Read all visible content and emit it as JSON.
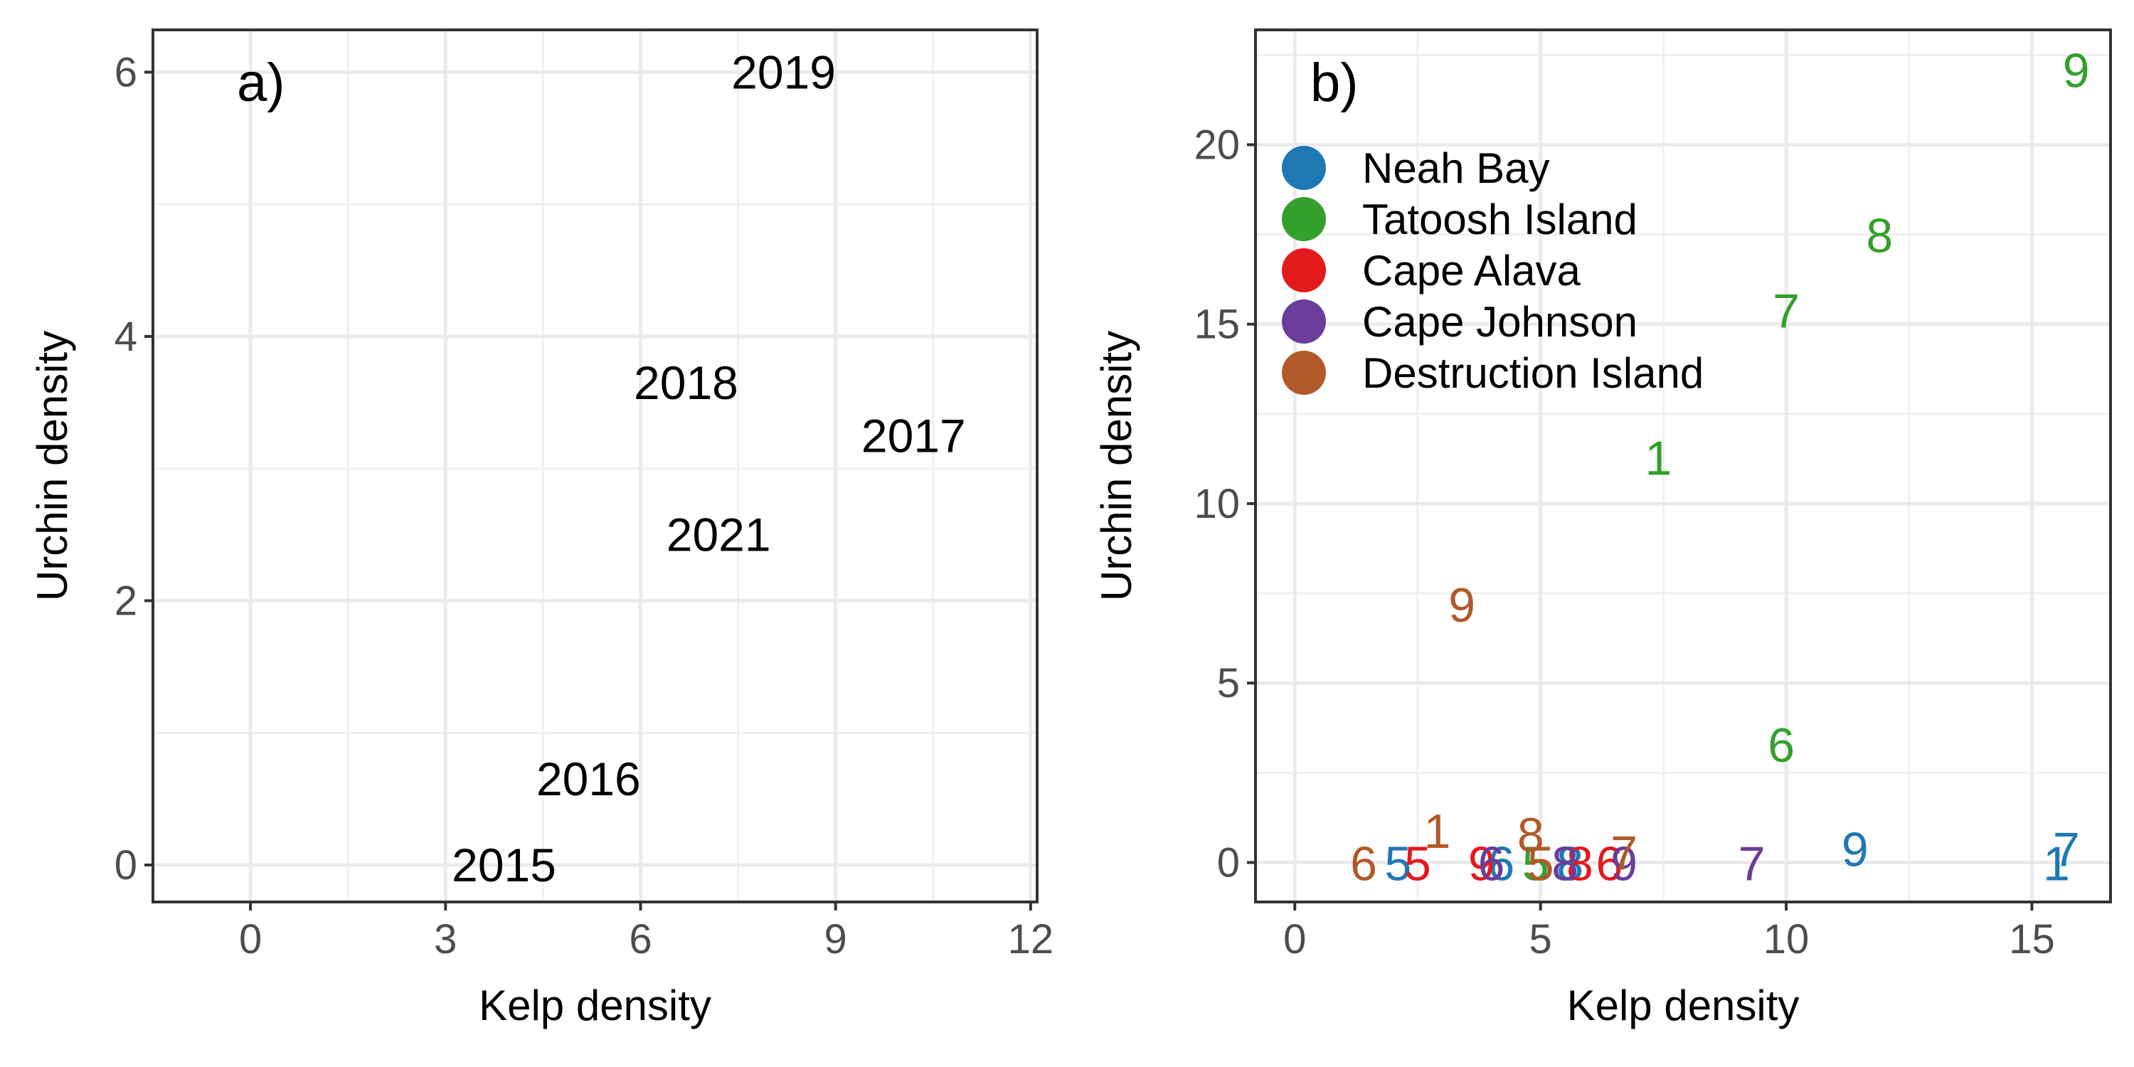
{
  "chart_data": [
    {
      "type": "scatter",
      "panel_label": "a)",
      "xlabel": "Kelp density",
      "ylabel": "Urchin density",
      "xlim": [
        -1.5,
        12.1
      ],
      "ylim": [
        -0.28,
        6.32
      ],
      "xticks": [
        0,
        3,
        6,
        9,
        12
      ],
      "xtick_labels": [
        "0",
        "3",
        "6",
        "9",
        "12"
      ],
      "yticks": [
        0,
        2,
        4,
        6
      ],
      "ytick_labels": [
        "0",
        "2",
        "4",
        "6"
      ],
      "grid": true,
      "points": [
        {
          "label": "2015",
          "x": 3.9,
          "y": 0.0
        },
        {
          "label": "2016",
          "x": 5.2,
          "y": 0.65
        },
        {
          "label": "2017",
          "x": 10.2,
          "y": 3.25
        },
        {
          "label": "2018",
          "x": 6.7,
          "y": 3.65
        },
        {
          "label": "2019",
          "x": 8.2,
          "y": 6.0
        },
        {
          "label": "2021",
          "x": 7.2,
          "y": 2.5
        }
      ]
    },
    {
      "type": "scatter",
      "panel_label": "b)",
      "xlabel": "Kelp density",
      "ylabel": "Urchin density",
      "xlim": [
        -0.8,
        16.6
      ],
      "ylim": [
        -1.1,
        23.2
      ],
      "xticks": [
        0,
        5,
        10,
        15
      ],
      "xtick_labels": [
        "0",
        "5",
        "10",
        "15"
      ],
      "yticks": [
        0,
        5,
        10,
        15,
        20
      ],
      "ytick_labels": [
        "0",
        "5",
        "10",
        "15",
        "20"
      ],
      "grid": true,
      "legend": {
        "placement": "top-left inside"
      },
      "series": [
        {
          "name": "Neah Bay",
          "color": "#1f78b4",
          "points": [
            {
              "label": "5",
              "x": 2.1,
              "y": 0.0
            },
            {
              "label": "6",
              "x": 4.2,
              "y": 0.0
            },
            {
              "label": "8",
              "x": 5.6,
              "y": 0.0
            },
            {
              "label": "9",
              "x": 11.4,
              "y": 0.4
            },
            {
              "label": "1",
              "x": 15.5,
              "y": 0.0
            },
            {
              "label": "7",
              "x": 15.7,
              "y": 0.4
            }
          ]
        },
        {
          "name": "Tatoosh Island",
          "color": "#33a02c",
          "points": [
            {
              "label": "9",
              "x": 15.9,
              "y": 22.1
            },
            {
              "label": "8",
              "x": 11.9,
              "y": 17.5
            },
            {
              "label": "7",
              "x": 10.0,
              "y": 15.4
            },
            {
              "label": "1",
              "x": 7.4,
              "y": 11.3
            },
            {
              "label": "6",
              "x": 9.9,
              "y": 3.3
            },
            {
              "label": "5",
              "x": 4.9,
              "y": 0.0
            }
          ]
        },
        {
          "name": "Cape Alava",
          "color": "#e31a1c",
          "points": [
            {
              "label": "5",
              "x": 2.5,
              "y": 0.0
            },
            {
              "label": "9",
              "x": 3.8,
              "y": 0.0
            },
            {
              "label": "6",
              "x": 6.4,
              "y": 0.0
            },
            {
              "label": "8",
              "x": 5.8,
              "y": 0.0
            },
            {
              "label": "7",
              "x": 9.3,
              "y": 0.0
            }
          ]
        },
        {
          "name": "Cape Johnson",
          "color": "#6a3d9a",
          "points": [
            {
              "label": "6",
              "x": 4.0,
              "y": 0.0
            },
            {
              "label": "8",
              "x": 5.5,
              "y": 0.0
            },
            {
              "label": "9",
              "x": 6.7,
              "y": 0.0
            },
            {
              "label": "7",
              "x": 9.3,
              "y": 0.0
            }
          ]
        },
        {
          "name": "Destruction Island",
          "color": "#b15928",
          "points": [
            {
              "label": "6",
              "x": 1.4,
              "y": 0.0
            },
            {
              "label": "1",
              "x": 2.9,
              "y": 0.9
            },
            {
              "label": "9",
              "x": 3.4,
              "y": 7.2
            },
            {
              "label": "8",
              "x": 4.8,
              "y": 0.8
            },
            {
              "label": "5",
              "x": 5.0,
              "y": 0.0
            },
            {
              "label": "7",
              "x": 6.7,
              "y": 0.3
            }
          ]
        }
      ]
    }
  ]
}
